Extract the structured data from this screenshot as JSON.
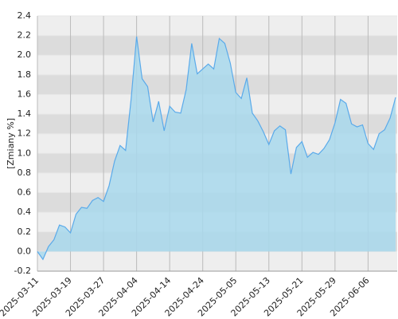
{
  "chart_data": {
    "type": "area",
    "y_label": "[Zmiany %]",
    "categories": [
      "2025-03-11",
      null,
      null,
      null,
      null,
      null,
      "2025-03-19",
      null,
      null,
      null,
      null,
      null,
      "2025-03-27",
      null,
      null,
      null,
      null,
      null,
      "2025-04-04",
      null,
      null,
      null,
      null,
      null,
      "2025-04-14",
      null,
      null,
      null,
      null,
      null,
      "2025-04-24",
      null,
      null,
      null,
      null,
      null,
      "2025-05-05",
      null,
      null,
      null,
      null,
      null,
      "2025-05-13",
      null,
      null,
      null,
      null,
      null,
      "2025-05-21",
      null,
      null,
      null,
      null,
      null,
      "2025-05-29",
      null,
      null,
      null,
      null,
      null,
      "2025-06-06",
      null,
      null,
      null,
      null,
      null
    ],
    "values": [
      0.0,
      -0.08,
      0.05,
      0.12,
      0.27,
      0.25,
      0.19,
      0.38,
      0.45,
      0.44,
      0.52,
      0.55,
      0.51,
      0.67,
      0.92,
      1.08,
      1.03,
      1.55,
      2.19,
      1.76,
      1.68,
      1.32,
      1.53,
      1.23,
      1.48,
      1.42,
      1.41,
      1.65,
      2.12,
      1.81,
      1.86,
      1.91,
      1.86,
      2.17,
      2.12,
      1.92,
      1.62,
      1.56,
      1.77,
      1.41,
      1.33,
      1.22,
      1.09,
      1.23,
      1.28,
      1.24,
      0.79,
      1.06,
      1.12,
      0.96,
      1.01,
      0.99,
      1.05,
      1.14,
      1.31,
      1.55,
      1.51,
      1.3,
      1.27,
      1.29,
      1.1,
      1.04,
      1.2,
      1.24,
      1.36,
      1.57
    ],
    "color": "#5aaaea",
    "fill_color": "#a8d8ec",
    "ylim": [
      -0.2,
      2.4
    ],
    "yticks": [
      -0.2,
      {
        "value": 0,
        "label": "0.0"
      },
      0.2,
      0.4,
      0.6,
      0.8,
      {
        "value": 1,
        "label": "1.0"
      },
      1.2,
      1.4,
      1.6,
      1.8,
      {
        "value": 2,
        "label": "2.0"
      },
      2.2,
      2.4
    ],
    "grid": true
  }
}
